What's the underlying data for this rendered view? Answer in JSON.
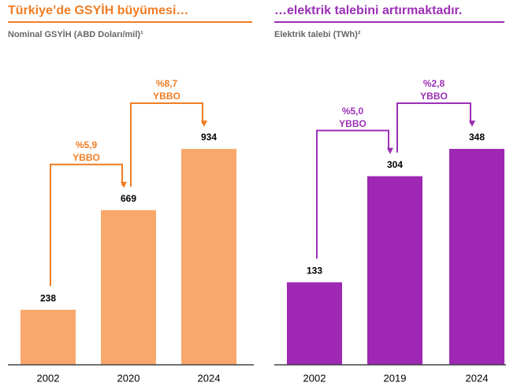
{
  "chart_data": [
    {
      "type": "bar",
      "title": "Türkiye’de GSYİH büyümesi…",
      "subtitle": "Nominal GSYİH (ABD Doları/mil)¹",
      "categories": [
        "2002",
        "2020",
        "2024"
      ],
      "values": [
        238,
        669,
        934
      ],
      "color": "#f9a86b",
      "accent": "#f07d24",
      "annotations": [
        {
          "lines": [
            "%5,9",
            "YBBO"
          ]
        },
        {
          "lines": [
            "%8,7",
            "YBBO"
          ]
        }
      ]
    },
    {
      "type": "bar",
      "title": "…elektrik talebini artırmaktadır.",
      "subtitle": "Elektrik talebi (TWh)²",
      "categories": [
        "2002",
        "2019",
        "2024"
      ],
      "values": [
        133,
        304,
        348
      ],
      "color": "#9e27b4",
      "accent": "#9b30b5",
      "annotations": [
        {
          "lines": [
            "%5,0",
            "YBBO"
          ]
        },
        {
          "lines": [
            "%2,8",
            "YBBO"
          ]
        }
      ]
    }
  ]
}
